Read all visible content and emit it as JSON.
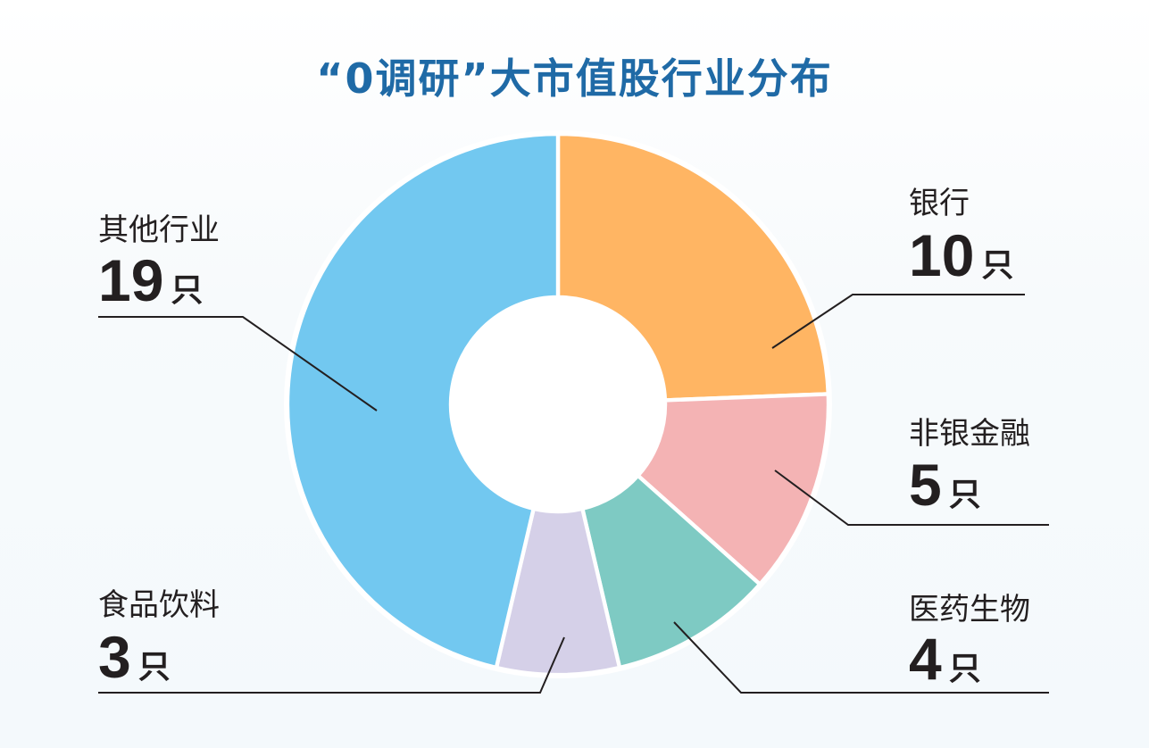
{
  "title": "“0调研”大市值股行业分布",
  "unit": "只",
  "chart_data": {
    "type": "pie",
    "title": "“0调研”大市值股行业分布",
    "donut": true,
    "slices": [
      {
        "label": "银行",
        "value": 10,
        "color": "#ffb563"
      },
      {
        "label": "非银金融",
        "value": 5,
        "color": "#f4b3b4"
      },
      {
        "label": "医药生物",
        "value": 4,
        "color": "#7ecac3"
      },
      {
        "label": "食品饮料",
        "value": 3,
        "color": "#d5d0e8"
      },
      {
        "label": "其他行业",
        "value": 19,
        "color": "#72c8f0"
      }
    ]
  }
}
